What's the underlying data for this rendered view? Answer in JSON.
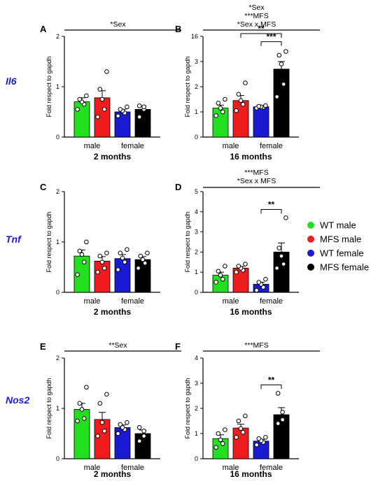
{
  "colors": {
    "WT male": "#22e01f",
    "MFS male": "#ee1c1c",
    "WT female": "#1a1ad0",
    "MFS female": "#000000"
  },
  "legend": {
    "position": "right",
    "entries": [
      "WT male",
      "MFS male",
      "WT female",
      "MFS female"
    ]
  },
  "chart_data": [
    {
      "id": "A",
      "type": "bar",
      "gene": "Il6",
      "subtitle": "2 months",
      "ylabel": "Fold respect to gapdh",
      "ylim": [
        0,
        2
      ],
      "yticks": [
        0,
        1,
        2
      ],
      "group_labels": [
        "male",
        "female"
      ],
      "annotation": [
        "*Sex"
      ],
      "series": [
        {
          "name": "WT male",
          "mean": 0.7,
          "sem": 0.08,
          "points": [
            0.55,
            0.65,
            0.7,
            0.75,
            0.82
          ]
        },
        {
          "name": "MFS male",
          "mean": 0.78,
          "sem": 0.14,
          "points": [
            0.4,
            0.55,
            0.75,
            0.95,
            1.3
          ]
        },
        {
          "name": "WT female",
          "mean": 0.5,
          "sem": 0.05,
          "points": [
            0.42,
            0.48,
            0.52,
            0.55,
            0.6
          ]
        },
        {
          "name": "MFS female",
          "mean": 0.55,
          "sem": 0.07,
          "points": [
            0.4,
            0.55,
            0.6,
            0.62
          ]
        }
      ],
      "brackets": []
    },
    {
      "id": "B",
      "type": "bar",
      "gene": "Il6",
      "subtitle": "16 months",
      "ylabel": "Fold respect to gapdh",
      "ylim": [
        0,
        16
      ],
      "yticks": [
        0,
        1,
        2,
        3,
        4
      ],
      "tick_labels": [
        "0",
        "1",
        "2",
        "3",
        "16"
      ],
      "scale": "broken",
      "group_labels": [
        "male",
        "female"
      ],
      "annotation": [
        "*Sex",
        "***MFS",
        "*Sex x MFS"
      ],
      "series": [
        {
          "name": "WT male",
          "mean": 1.15,
          "sem": 0.12,
          "points": [
            0.85,
            1.0,
            1.15,
            1.35,
            1.5
          ]
        },
        {
          "name": "MFS male",
          "mean": 1.45,
          "sem": 0.2,
          "points": [
            1.05,
            1.3,
            1.45,
            1.7,
            2.15
          ]
        },
        {
          "name": "WT female",
          "mean": 1.2,
          "sem": 0.03,
          "points": [
            1.15,
            1.18,
            1.2,
            1.22,
            1.25
          ]
        },
        {
          "name": "MFS female",
          "mean": 2.7,
          "sem": 0.3,
          "points": [
            1.6,
            2.1,
            2.9,
            3.25,
            3.4
          ]
        }
      ],
      "brackets": [
        {
          "from": 1,
          "to": 3,
          "label": "**"
        },
        {
          "from": 2,
          "to": 3,
          "label": "***"
        }
      ]
    },
    {
      "id": "C",
      "type": "bar",
      "gene": "Tnf",
      "subtitle": "2 months",
      "ylabel": "Fold respect to gapdh",
      "ylim": [
        0,
        2
      ],
      "yticks": [
        0,
        1,
        2
      ],
      "group_labels": [
        "male",
        "female"
      ],
      "annotation": [],
      "series": [
        {
          "name": "WT male",
          "mean": 0.72,
          "sem": 0.12,
          "points": [
            0.35,
            0.6,
            0.75,
            0.82,
            1.0
          ]
        },
        {
          "name": "MFS male",
          "mean": 0.62,
          "sem": 0.09,
          "points": [
            0.4,
            0.48,
            0.6,
            0.72,
            0.78
          ]
        },
        {
          "name": "WT female",
          "mean": 0.67,
          "sem": 0.08,
          "points": [
            0.45,
            0.6,
            0.68,
            0.78,
            0.85
          ]
        },
        {
          "name": "MFS female",
          "mean": 0.65,
          "sem": 0.06,
          "points": [
            0.48,
            0.58,
            0.65,
            0.72,
            0.78
          ]
        }
      ],
      "brackets": []
    },
    {
      "id": "D",
      "type": "bar",
      "gene": "Tnf",
      "subtitle": "16 months",
      "ylabel": "Fold respect to gapdh",
      "ylim": [
        0,
        5
      ],
      "yticks": [
        0,
        1,
        2,
        3,
        4,
        5
      ],
      "group_labels": [
        "male",
        "female"
      ],
      "annotation": [
        "***MFS",
        "*Sex x MFS"
      ],
      "series": [
        {
          "name": "WT male",
          "mean": 0.85,
          "sem": 0.15,
          "points": [
            0.5,
            0.65,
            0.85,
            1.05,
            1.3
          ]
        },
        {
          "name": "MFS male",
          "mean": 1.2,
          "sem": 0.08,
          "points": [
            1.0,
            1.1,
            1.2,
            1.3,
            1.4
          ]
        },
        {
          "name": "WT female",
          "mean": 0.4,
          "sem": 0.1,
          "points": [
            0.1,
            0.25,
            0.4,
            0.5,
            0.65
          ]
        },
        {
          "name": "MFS female",
          "mean": 2.0,
          "sem": 0.45,
          "points": [
            1.2,
            1.4,
            1.8,
            2.2,
            3.7
          ]
        }
      ],
      "brackets": [
        {
          "from": 2,
          "to": 3,
          "label": "**"
        }
      ]
    },
    {
      "id": "E",
      "type": "bar",
      "gene": "Nos2",
      "subtitle": "2 months",
      "ylabel": "Fold respect to gapdh",
      "ylim": [
        0,
        2
      ],
      "yticks": [
        0,
        1,
        2
      ],
      "group_labels": [
        "male",
        "female"
      ],
      "annotation": [
        "**Sex"
      ],
      "series": [
        {
          "name": "WT male",
          "mean": 0.98,
          "sem": 0.12,
          "points": [
            0.75,
            0.8,
            0.98,
            1.1,
            1.42
          ]
        },
        {
          "name": "MFS male",
          "mean": 0.78,
          "sem": 0.14,
          "points": [
            0.45,
            0.55,
            0.72,
            1.1,
            1.28
          ]
        },
        {
          "name": "WT female",
          "mean": 0.62,
          "sem": 0.05,
          "points": [
            0.5,
            0.58,
            0.62,
            0.68,
            0.72
          ]
        },
        {
          "name": "MFS female",
          "mean": 0.5,
          "sem": 0.07,
          "points": [
            0.35,
            0.45,
            0.55,
            0.62
          ]
        }
      ],
      "brackets": []
    },
    {
      "id": "F",
      "type": "bar",
      "gene": "Nos2",
      "subtitle": "16 months",
      "ylabel": "Fold respect to gapdh",
      "ylim": [
        0,
        4
      ],
      "yticks": [
        0,
        1,
        2,
        3,
        4
      ],
      "group_labels": [
        "male",
        "female"
      ],
      "annotation": [
        "***MFS"
      ],
      "series": [
        {
          "name": "WT male",
          "mean": 0.8,
          "sem": 0.15,
          "points": [
            0.45,
            0.6,
            0.75,
            1.0,
            1.15
          ]
        },
        {
          "name": "MFS male",
          "mean": 1.22,
          "sem": 0.15,
          "points": [
            0.85,
            1.05,
            1.2,
            1.5,
            1.7
          ]
        },
        {
          "name": "WT female",
          "mean": 0.7,
          "sem": 0.07,
          "points": [
            0.55,
            0.65,
            0.72,
            0.8,
            0.85
          ]
        },
        {
          "name": "MFS female",
          "mean": 1.75,
          "sem": 0.28,
          "points": [
            1.4,
            1.55,
            1.85,
            2.6
          ]
        }
      ],
      "brackets": [
        {
          "from": 2,
          "to": 3,
          "label": "**"
        }
      ]
    }
  ]
}
